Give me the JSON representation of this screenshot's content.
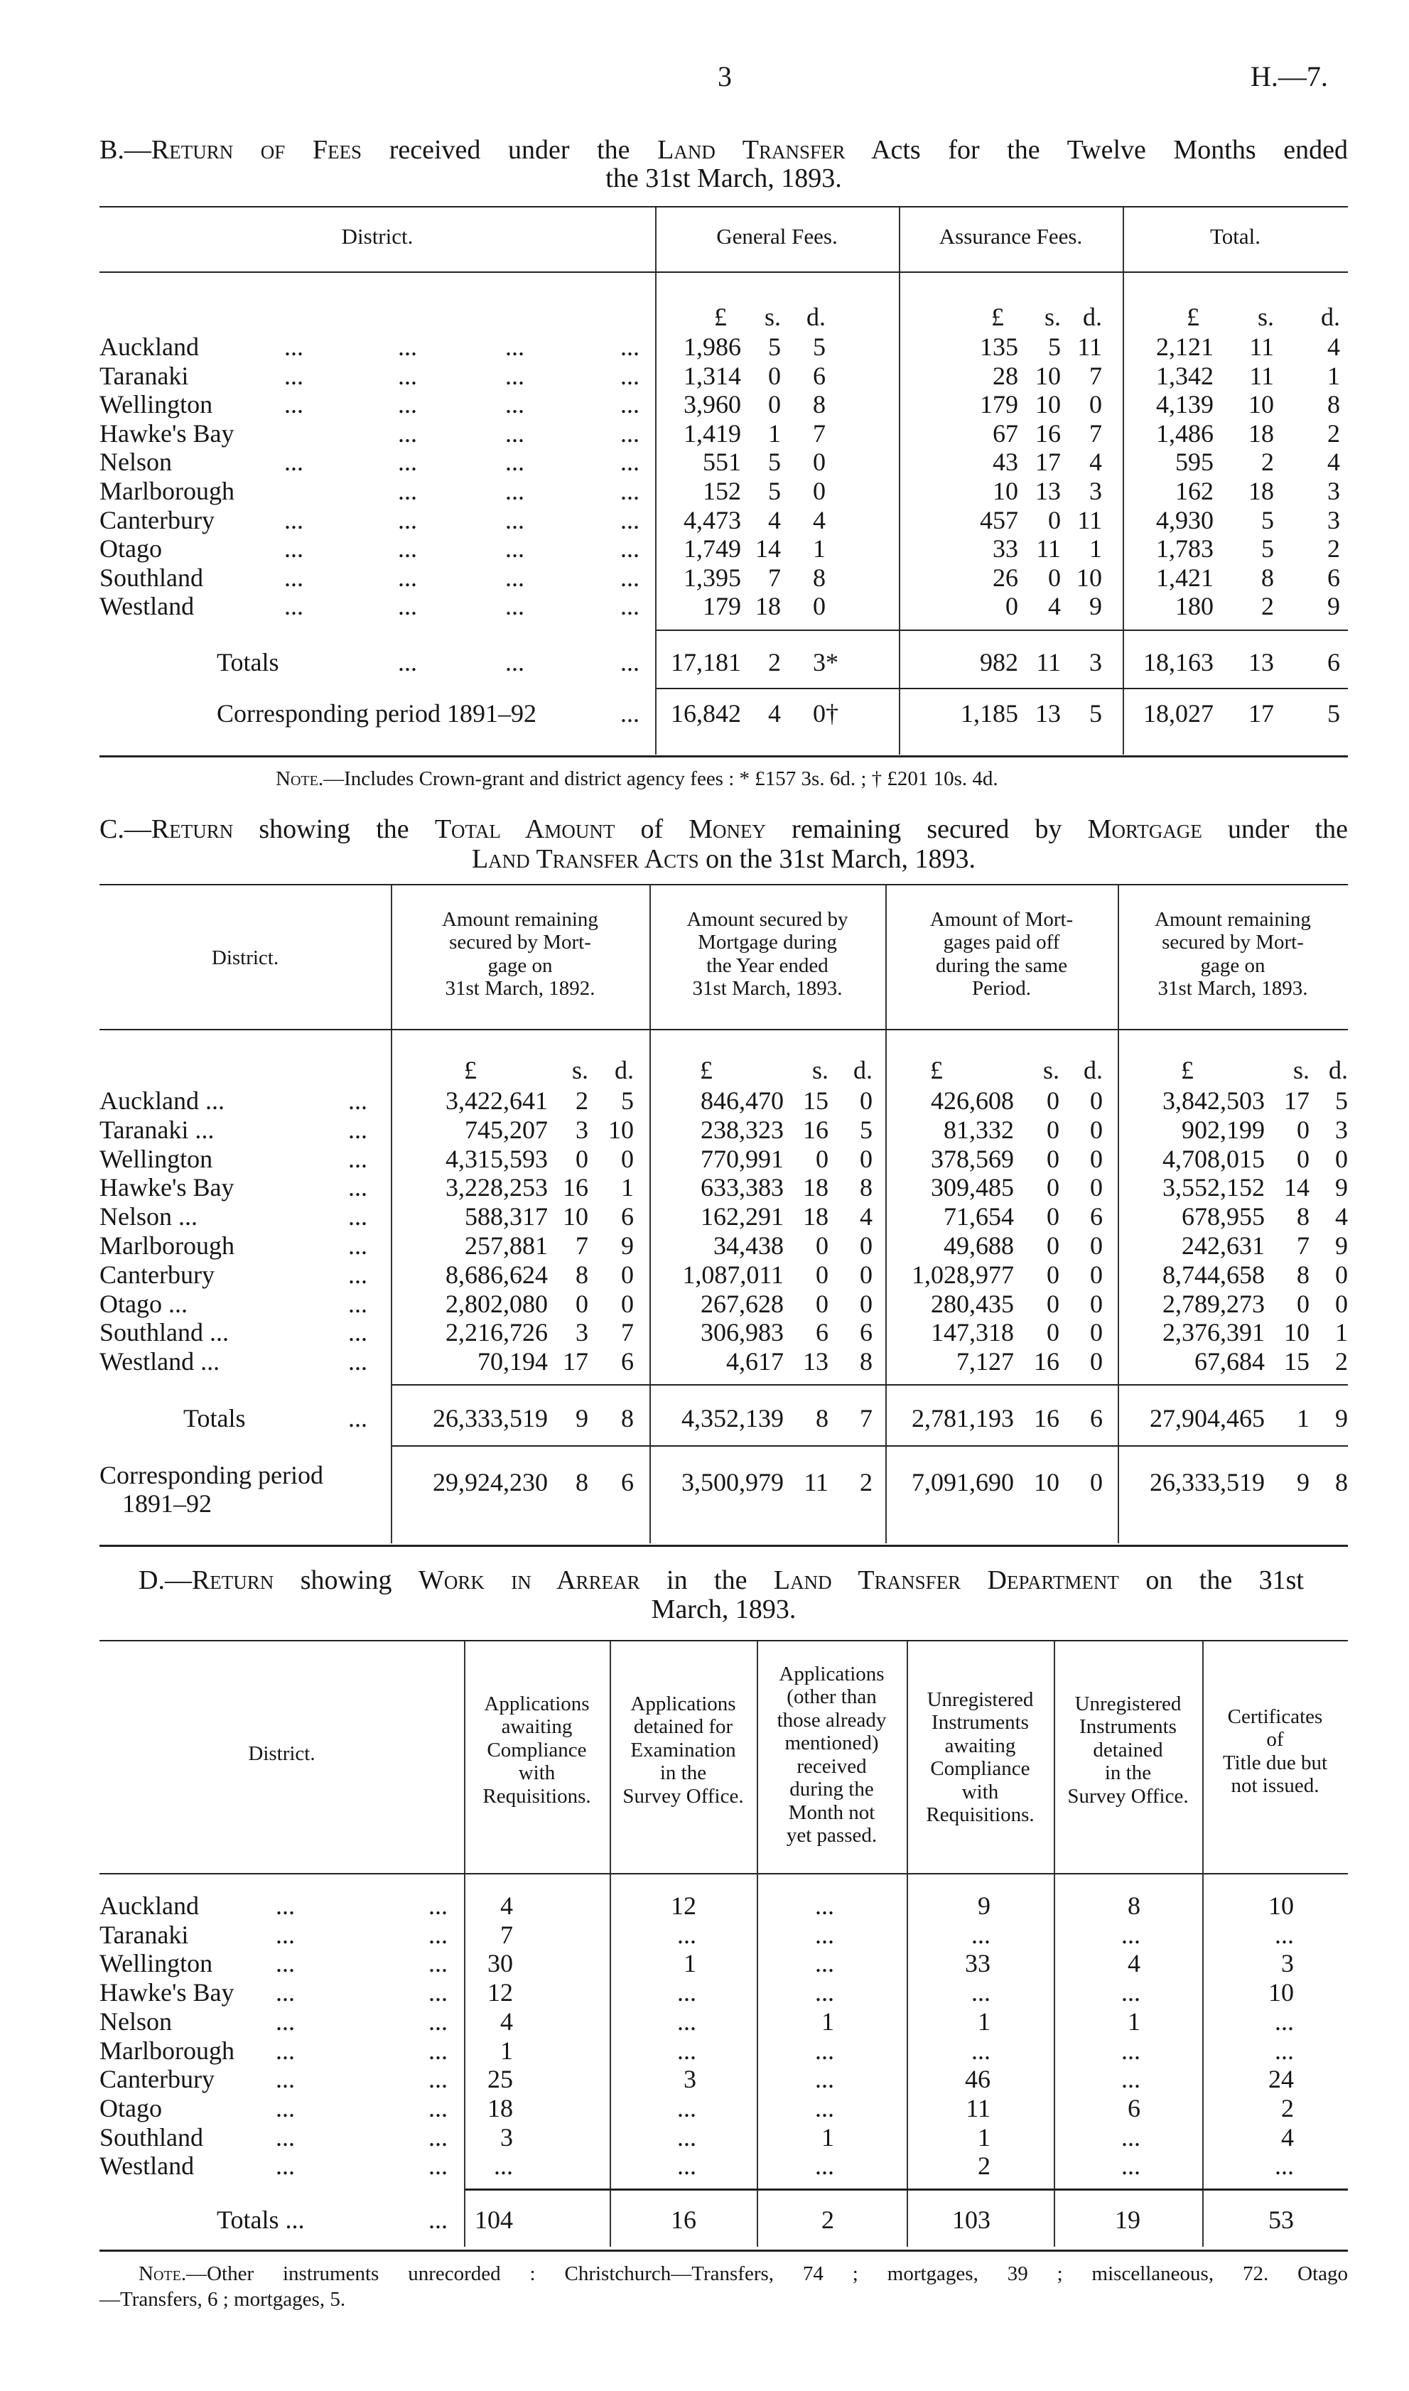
{
  "page_header": {
    "page_number": "3",
    "reference": "H.—7."
  },
  "leader": "...",
  "table_b": {
    "title_line1": [
      {
        "t": "B.—",
        "sc": false
      },
      {
        "t": "Return of Fees",
        "sc": true
      },
      {
        "t": " received under the ",
        "sc": false
      },
      {
        "t": "Land Transfer",
        "sc": true
      },
      {
        "t": " Acts for the Twelve Months ended",
        "sc": false
      }
    ],
    "title_line2": "the 31st March, 1893.",
    "headers": [
      "District.",
      "General Fees.",
      "Assurance Fees.",
      "Total."
    ],
    "units": [
      "£",
      "s.",
      "d."
    ],
    "rows": [
      {
        "district": "Auckland",
        "general": [
          "1,986",
          "5",
          "5"
        ],
        "assurance": [
          "135",
          "5",
          "11"
        ],
        "total": [
          "2,121",
          "11",
          "4"
        ]
      },
      {
        "district": "Taranaki",
        "general": [
          "1,314",
          "0",
          "6"
        ],
        "assurance": [
          "28",
          "10",
          "7"
        ],
        "total": [
          "1,342",
          "11",
          "1"
        ]
      },
      {
        "district": "Wellington",
        "general": [
          "3,960",
          "0",
          "8"
        ],
        "assurance": [
          "179",
          "10",
          "0"
        ],
        "total": [
          "4,139",
          "10",
          "8"
        ]
      },
      {
        "district": "Hawke's Bay",
        "general": [
          "1,419",
          "1",
          "7"
        ],
        "assurance": [
          "67",
          "16",
          "7"
        ],
        "total": [
          "1,486",
          "18",
          "2"
        ]
      },
      {
        "district": "Nelson",
        "general": [
          "551",
          "5",
          "0"
        ],
        "assurance": [
          "43",
          "17",
          "4"
        ],
        "total": [
          "595",
          "2",
          "4"
        ]
      },
      {
        "district": "Marlborough",
        "general": [
          "152",
          "5",
          "0"
        ],
        "assurance": [
          "10",
          "13",
          "3"
        ],
        "total": [
          "162",
          "18",
          "3"
        ]
      },
      {
        "district": "Canterbury",
        "general": [
          "4,473",
          "4",
          "4"
        ],
        "assurance": [
          "457",
          "0",
          "11"
        ],
        "total": [
          "4,930",
          "5",
          "3"
        ]
      },
      {
        "district": "Otago",
        "general": [
          "1,749",
          "14",
          "1"
        ],
        "assurance": [
          "33",
          "11",
          "1"
        ],
        "total": [
          "1,783",
          "5",
          "2"
        ]
      },
      {
        "district": "Southland",
        "general": [
          "1,395",
          "7",
          "8"
        ],
        "assurance": [
          "26",
          "0",
          "10"
        ],
        "total": [
          "1,421",
          "8",
          "6"
        ]
      },
      {
        "district": "Westland",
        "general": [
          "179",
          "18",
          "0"
        ],
        "assurance": [
          "0",
          "4",
          "9"
        ],
        "total": [
          "180",
          "2",
          "9"
        ]
      }
    ],
    "totals": {
      "label": "Totals",
      "general": [
        "17,181",
        "2",
        "3*"
      ],
      "assurance": [
        "982",
        "11",
        "3"
      ],
      "total": [
        "18,163",
        "13",
        "6"
      ]
    },
    "previous": {
      "label": "Corresponding period 1891–92",
      "general": [
        "16,842",
        "4",
        "0†"
      ],
      "assurance": [
        "1,185",
        "13",
        "5"
      ],
      "total": [
        "18,027",
        "17",
        "5"
      ]
    },
    "note": [
      {
        "t": "Note.",
        "sc": true
      },
      {
        "t": "—Includes Crown-grant and district agency fees : * £157 3s. 6d. ; † £201 10s. 4d.",
        "sc": false
      }
    ]
  },
  "table_c": {
    "title_line1": [
      {
        "t": "C.—",
        "sc": false
      },
      {
        "t": "Return",
        "sc": true
      },
      {
        "t": " showing the ",
        "sc": false
      },
      {
        "t": "Total Amount",
        "sc": true
      },
      {
        "t": " of ",
        "sc": false
      },
      {
        "t": "Money",
        "sc": true
      },
      {
        "t": " remaining secured by ",
        "sc": false
      },
      {
        "t": "Mortgage",
        "sc": true
      },
      {
        "t": " under the",
        "sc": false
      }
    ],
    "title_line2": [
      {
        "t": "Land Transfer Acts",
        "sc": true
      },
      {
        "t": " on the 31st March, 1893.",
        "sc": false
      }
    ],
    "headers": [
      "District.",
      "Amount remaining\nsecured by Mort-\ngage on\n31st March, 1892.",
      "Amount secured by\nMortgage during\nthe Year ended\n31st March, 1893.",
      "Amount of Mort-\ngages paid off\nduring the same\nPeriod.",
      "Amount remaining\nsecured by Mort-\ngage on\n31st March, 1893."
    ],
    "units": [
      "£",
      "s.",
      "d."
    ],
    "rows": [
      {
        "district": "Auckland ...",
        "values": [
          [
            "3,422,641",
            "2",
            "5"
          ],
          [
            "846,470",
            "15",
            "0"
          ],
          [
            "426,608",
            "0",
            "0"
          ],
          [
            "3,842,503",
            "17",
            "5"
          ]
        ]
      },
      {
        "district": "Taranaki ...",
        "values": [
          [
            "745,207",
            "3",
            "10"
          ],
          [
            "238,323",
            "16",
            "5"
          ],
          [
            "81,332",
            "0",
            "0"
          ],
          [
            "902,199",
            "0",
            "3"
          ]
        ]
      },
      {
        "district": "Wellington",
        "values": [
          [
            "4,315,593",
            "0",
            "0"
          ],
          [
            "770,991",
            "0",
            "0"
          ],
          [
            "378,569",
            "0",
            "0"
          ],
          [
            "4,708,015",
            "0",
            "0"
          ]
        ]
      },
      {
        "district": "Hawke's Bay",
        "values": [
          [
            "3,228,253",
            "16",
            "1"
          ],
          [
            "633,383",
            "18",
            "8"
          ],
          [
            "309,485",
            "0",
            "0"
          ],
          [
            "3,552,152",
            "14",
            "9"
          ]
        ]
      },
      {
        "district": "Nelson ...",
        "values": [
          [
            "588,317",
            "10",
            "6"
          ],
          [
            "162,291",
            "18",
            "4"
          ],
          [
            "71,654",
            "0",
            "6"
          ],
          [
            "678,955",
            "8",
            "4"
          ]
        ]
      },
      {
        "district": "Marlborough",
        "values": [
          [
            "257,881",
            "7",
            "9"
          ],
          [
            "34,438",
            "0",
            "0"
          ],
          [
            "49,688",
            "0",
            "0"
          ],
          [
            "242,631",
            "7",
            "9"
          ]
        ]
      },
      {
        "district": "Canterbury",
        "values": [
          [
            "8,686,624",
            "8",
            "0"
          ],
          [
            "1,087,011",
            "0",
            "0"
          ],
          [
            "1,028,977",
            "0",
            "0"
          ],
          [
            "8,744,658",
            "8",
            "0"
          ]
        ]
      },
      {
        "district": "Otago ...",
        "values": [
          [
            "2,802,080",
            "0",
            "0"
          ],
          [
            "267,628",
            "0",
            "0"
          ],
          [
            "280,435",
            "0",
            "0"
          ],
          [
            "2,789,273",
            "0",
            "0"
          ]
        ]
      },
      {
        "district": "Southland ...",
        "values": [
          [
            "2,216,726",
            "3",
            "7"
          ],
          [
            "306,983",
            "6",
            "6"
          ],
          [
            "147,318",
            "0",
            "0"
          ],
          [
            "2,376,391",
            "10",
            "1"
          ]
        ]
      },
      {
        "district": "Westland ...",
        "values": [
          [
            "70,194",
            "17",
            "6"
          ],
          [
            "4,617",
            "13",
            "8"
          ],
          [
            "7,127",
            "16",
            "0"
          ],
          [
            "67,684",
            "15",
            "2"
          ]
        ]
      }
    ],
    "totals": {
      "label": "Totals",
      "values": [
        [
          "26,333,519",
          "9",
          "8"
        ],
        [
          "4,352,139",
          "8",
          "7"
        ],
        [
          "2,781,193",
          "16",
          "6"
        ],
        [
          "27,904,465",
          "1",
          "9"
        ]
      ]
    },
    "previous": {
      "label_line1": "Corresponding period",
      "label_line2": "1891–92",
      "values": [
        [
          "29,924,230",
          "8",
          "6"
        ],
        [
          "3,500,979",
          "11",
          "2"
        ],
        [
          "7,091,690",
          "10",
          "0"
        ],
        [
          "26,333,519",
          "9",
          "8"
        ]
      ]
    }
  },
  "table_d": {
    "title_line1": [
      {
        "t": "D.—",
        "sc": false
      },
      {
        "t": "Return",
        "sc": true
      },
      {
        "t": " showing ",
        "sc": false
      },
      {
        "t": "Work in Arrear",
        "sc": true
      },
      {
        "t": " in the ",
        "sc": false
      },
      {
        "t": "Land Transfer Department",
        "sc": true
      },
      {
        "t": " on the 31st",
        "sc": false
      }
    ],
    "title_line2": "March, 1893.",
    "headers": [
      "District.",
      "Applications\nawaiting\nCompliance\nwith\nRequisitions.",
      "Applications\ndetained for\nExamination\nin the\nSurvey Office.",
      "Applications\n(other than\nthose already\nmentioned)\nreceived\nduring the\nMonth not\nyet passed.",
      "Unregistered\nInstruments\nawaiting\nCompliance\nwith\nRequisitions.",
      "Unregistered\nInstruments\ndetained\nin the\nSurvey Office.",
      "Certificates\nof\nTitle due but\nnot issued."
    ],
    "rows": [
      {
        "district": "Auckland",
        "values": [
          "4",
          "12",
          "...",
          "9",
          "8",
          "10"
        ]
      },
      {
        "district": "Taranaki",
        "values": [
          "7",
          "...",
          "...",
          "...",
          "...",
          "..."
        ]
      },
      {
        "district": "Wellington",
        "values": [
          "30",
          "1",
          "...",
          "33",
          "4",
          "3"
        ]
      },
      {
        "district": "Hawke's Bay",
        "values": [
          "12",
          "...",
          "...",
          "...",
          "...",
          "10"
        ]
      },
      {
        "district": "Nelson",
        "values": [
          "4",
          "...",
          "1",
          "1",
          "1",
          "..."
        ]
      },
      {
        "district": "Marlborough",
        "values": [
          "1",
          "...",
          "...",
          "...",
          "...",
          "..."
        ]
      },
      {
        "district": "Canterbury",
        "values": [
          "25",
          "3",
          "...",
          "46",
          "...",
          "24"
        ]
      },
      {
        "district": "Otago",
        "values": [
          "18",
          "...",
          "...",
          "11",
          "6",
          "2"
        ]
      },
      {
        "district": "Southland",
        "values": [
          "3",
          "...",
          "1",
          "1",
          "...",
          "4"
        ]
      },
      {
        "district": "Westland",
        "values": [
          "...",
          "...",
          "...",
          "2",
          "...",
          "..."
        ]
      }
    ],
    "totals": {
      "label": "Totals ...",
      "values": [
        "104",
        "16",
        "2",
        "103",
        "19",
        "53"
      ]
    },
    "note": [
      {
        "t": "Note.",
        "sc": true
      },
      {
        "t": "—Other instruments unrecorded : Christchurch—Transfers, 74 ; mortgages, 39 ; miscellaneous, 72.  Otago",
        "sc": false
      }
    ],
    "note_line2": "—Transfers, 6 ; mortgages, 5."
  }
}
